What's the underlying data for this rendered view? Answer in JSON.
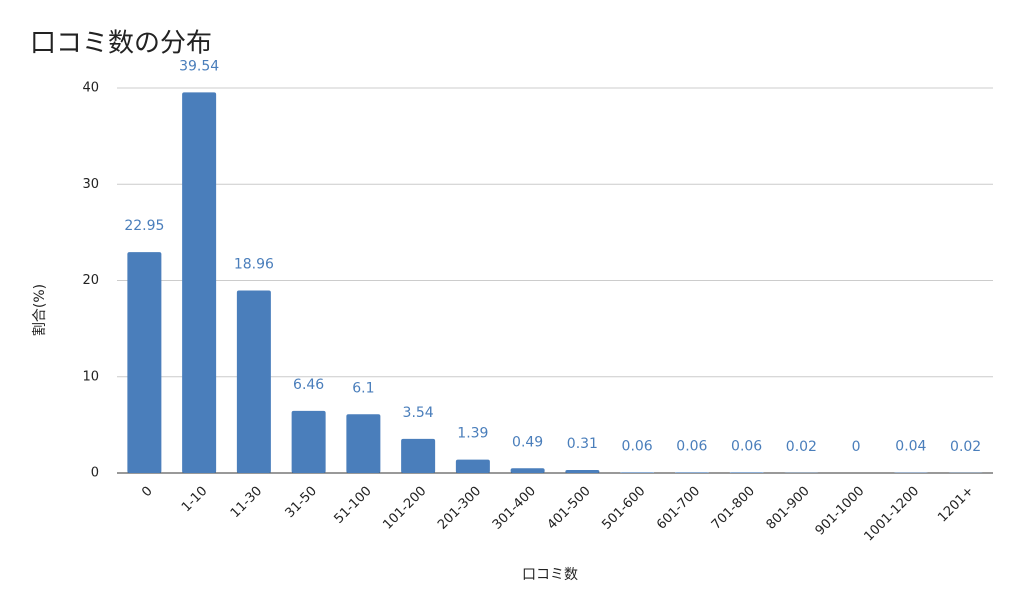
{
  "chart_data": {
    "type": "bar",
    "title": "口コミ数の分布",
    "x_label": "口コミ数",
    "y_label": "割合(%)",
    "categories": [
      "0",
      "1-10",
      "11-30",
      "31-50",
      "51-100",
      "101-200",
      "201-300",
      "301-400",
      "401-500",
      "501-600",
      "601-700",
      "701-800",
      "801-900",
      "901-1000",
      "1001-1200",
      "1201+"
    ],
    "values": [
      22.95,
      39.54,
      18.96,
      6.46,
      6.1,
      3.54,
      1.39,
      0.49,
      0.31,
      0.06,
      0.06,
      0.06,
      0.02,
      0,
      0.04,
      0.02
    ],
    "color": "#4a7ebb",
    "ylim": [
      0,
      40
    ],
    "yticks": [
      0,
      10,
      20,
      30,
      40
    ],
    "grid": true
  }
}
